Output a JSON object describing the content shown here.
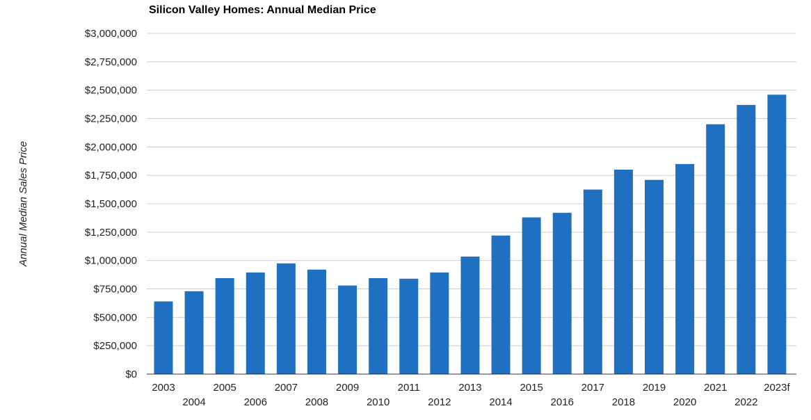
{
  "chart_data": {
    "type": "bar",
    "title": "Silicon Valley Homes: Annual Median Price",
    "xlabel": "",
    "ylabel": "Annual Median Sales Price",
    "categories": [
      "2003",
      "2004",
      "2005",
      "2006",
      "2007",
      "2008",
      "2009",
      "2010",
      "2011",
      "2012",
      "2013",
      "2014",
      "2015",
      "2016",
      "2017",
      "2018",
      "2019",
      "2020",
      "2021",
      "2022",
      "2023f"
    ],
    "values": [
      640000,
      730000,
      845000,
      895000,
      975000,
      920000,
      780000,
      845000,
      840000,
      895000,
      1035000,
      1220000,
      1380000,
      1420000,
      1625000,
      1800000,
      1710000,
      1850000,
      2200000,
      2370000,
      2460000
    ],
    "ylim": [
      0,
      3000000
    ],
    "yticks": [
      "$0",
      "$250,000",
      "$500,000",
      "$750,000",
      "$1,000,000",
      "$1,250,000",
      "$1,500,000",
      "$1,750,000",
      "$2,000,000",
      "$2,250,000",
      "$2,500,000",
      "$2,750,000",
      "$3,000,000"
    ],
    "grid": true,
    "bar_color": "#1f70c1",
    "grid_color": "#cccccc"
  }
}
